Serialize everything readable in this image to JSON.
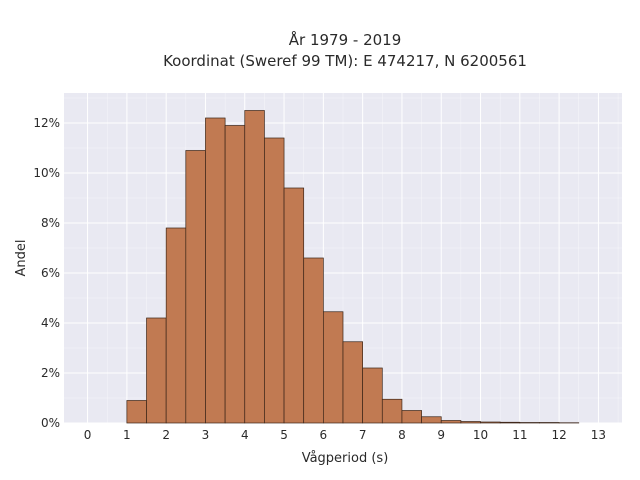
{
  "chart_data": {
    "type": "bar",
    "title": [
      "År 1979 - 2019",
      "Koordinat (Sweref 99 TM): E 474217, N 6200561"
    ],
    "xlabel": "Vågperiod (s)",
    "ylabel": "Andel",
    "x_ticks": [
      "0",
      "1",
      "2",
      "3",
      "4",
      "5",
      "6",
      "7",
      "8",
      "9",
      "10",
      "11",
      "12",
      "13"
    ],
    "y_ticks": [
      "0%",
      "2%",
      "4%",
      "6%",
      "8%",
      "10%",
      "12%"
    ],
    "xlim": [
      -0.6,
      13.6
    ],
    "ylim": [
      0,
      13.2
    ],
    "bin_width": 0.5,
    "bins": [
      {
        "x0": 1.0,
        "value": 0.9
      },
      {
        "x0": 1.5,
        "value": 4.2
      },
      {
        "x0": 2.0,
        "value": 7.8
      },
      {
        "x0": 2.5,
        "value": 10.9
      },
      {
        "x0": 3.0,
        "value": 12.2
      },
      {
        "x0": 3.5,
        "value": 11.9
      },
      {
        "x0": 4.0,
        "value": 12.5
      },
      {
        "x0": 4.5,
        "value": 11.4
      },
      {
        "x0": 5.0,
        "value": 9.4
      },
      {
        "x0": 5.5,
        "value": 6.6
      },
      {
        "x0": 6.0,
        "value": 4.45
      },
      {
        "x0": 6.5,
        "value": 3.25
      },
      {
        "x0": 7.0,
        "value": 2.2
      },
      {
        "x0": 7.5,
        "value": 0.95
      },
      {
        "x0": 8.0,
        "value": 0.5
      },
      {
        "x0": 8.5,
        "value": 0.25
      },
      {
        "x0": 9.0,
        "value": 0.1
      },
      {
        "x0": 9.5,
        "value": 0.06
      },
      {
        "x0": 10.0,
        "value": 0.04
      },
      {
        "x0": 10.5,
        "value": 0.03
      },
      {
        "x0": 11.0,
        "value": 0.02
      },
      {
        "x0": 11.5,
        "value": 0.02
      },
      {
        "x0": 12.0,
        "value": 0.01
      }
    ],
    "grid": true,
    "colors": {
      "bar_fill": "#c17a52",
      "bar_edge": "#3b2518",
      "plot_background": "#e9e9f2",
      "grid": "#ffffff"
    }
  }
}
